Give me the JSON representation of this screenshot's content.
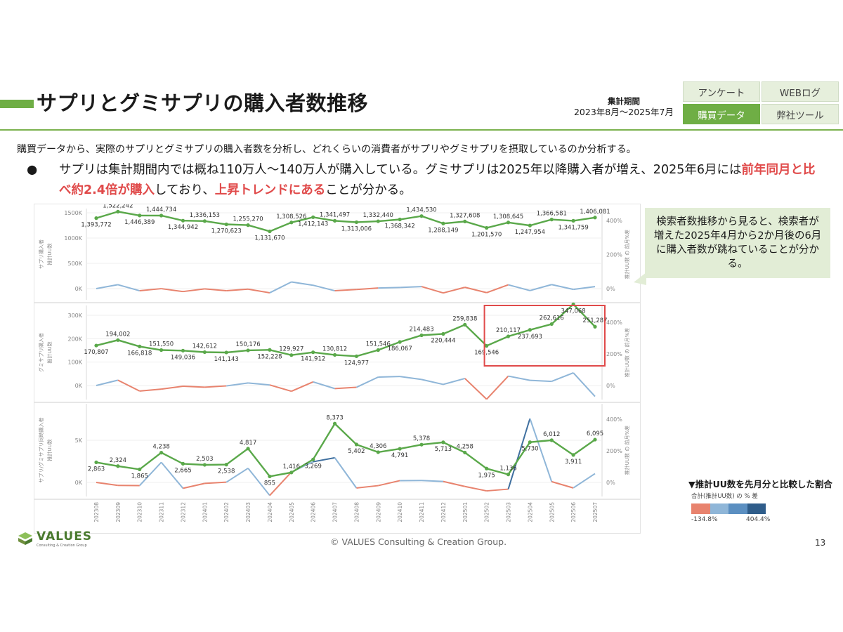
{
  "header": {
    "title": "サプリとグミサプリの購入者数推移",
    "period_label": "集計期間",
    "period_value": "2023年8月～2025年7月",
    "tabs": [
      {
        "label": "アンケート",
        "active": false
      },
      {
        "label": "WEBログ",
        "active": false
      },
      {
        "label": "購買データ",
        "active": true
      },
      {
        "label": "弊社ツール",
        "active": false
      }
    ]
  },
  "body": {
    "description": "購買データから、実際のサプリとグミサプリの購入者数を分析し、どれくらいの消費者がサプリやグミサプリを摂取しているのか分析する。",
    "bullet_marker": "●",
    "bullet_part1": "サプリは集計期間内では概ね110万人～140万人が購入している。グミサプリは2025年以降購入者が増え、2025年6月には",
    "bullet_highlight1": "前年同月と比べ約2.4倍が購入",
    "bullet_part2": "しており、",
    "bullet_highlight2": "上昇トレンドにある",
    "bullet_part3": "ことが分かる。"
  },
  "callout": {
    "text": "検索者数推移から見ると、検索者が増えた2025年4月から2か月後の6月に購入者数が跳ねていることが分かる。"
  },
  "legend": {
    "title": "▼推計UU数を先月分と比較した割合",
    "subtitle": "合計(推計UU数) の % 差",
    "min_label": "-134.8%",
    "max_label": "404.4%",
    "colors": [
      "#e8836e",
      "#8fb6d8",
      "#5b8fc1",
      "#2f5d8a"
    ]
  },
  "footer": {
    "logo_name": "VALUES",
    "logo_sub": "Consulting & Creation Group",
    "copyright": "© VALUES Consulting & Creation Group.",
    "page_number": "13"
  },
  "colors": {
    "accent_green": "#6fae45",
    "line_green": "#5aa84a",
    "highlight_red": "#e04a4a",
    "pct_negative": "#e8836e",
    "pct_positive": "#8fb6d8"
  },
  "chart_data": [
    {
      "type": "line",
      "ylabel_outer": "サプリ購入者",
      "ylabel": "推計UU数",
      "ylabel_right": "推計UU数 の 前月%差",
      "y_ticks": [
        "0K",
        "500K",
        "1000K",
        "1500K"
      ],
      "ylim": [
        0,
        1500000
      ],
      "right_ticks": [
        "0%",
        "200%",
        "400%"
      ],
      "right_lim": [
        -134.8,
        404.4
      ],
      "x": [
        "202308",
        "202309",
        "202310",
        "202311",
        "202312",
        "202401",
        "202402",
        "202403",
        "202404",
        "202405",
        "202406",
        "202407",
        "202408",
        "202409",
        "202410",
        "202411",
        "202412",
        "202501",
        "202502",
        "202503",
        "202504",
        "202505",
        "202506",
        "202507"
      ],
      "series": [
        {
          "name": "推計UU数",
          "values": [
            1393772,
            1522242,
            1446389,
            1444734,
            1344942,
            1336153,
            1270623,
            1255270,
            1131670,
            1308526,
            1412143,
            1341497,
            1313006,
            1332440,
            1368342,
            1434530,
            1288149,
            1327608,
            1201570,
            1308645,
            1247954,
            1366581,
            1341759,
            1406081
          ]
        },
        {
          "name": "推計UU数 の 前月%差",
          "values": [
            0,
            9.2,
            -5.0,
            -0.1,
            -6.9,
            -0.7,
            -4.9,
            -1.2,
            -9.8,
            15.6,
            7.9,
            -5.0,
            -2.1,
            1.5,
            2.7,
            4.8,
            -10.2,
            3.1,
            -9.5,
            8.9,
            -4.6,
            9.5,
            -1.8,
            4.8
          ]
        }
      ],
      "labels": [
        "1,393,772",
        "1,522,242",
        "1,446,389",
        "1,444,734",
        "1,344,942",
        "1,336,153",
        "1,270,623",
        "1,255,270",
        "1,131,670",
        "1,308,526",
        "1,412,143",
        "1,341,497",
        "1,313,006",
        "1,332,440",
        "1,368,342",
        "1,434,530",
        "1,288,149",
        "1,327,608",
        "1,201,570",
        "1,308,645",
        "1,247,954",
        "1,366,581",
        "1,341,759",
        "1,406,081"
      ]
    },
    {
      "type": "line",
      "ylabel_outer": "グミサプリ購入者",
      "ylabel": "推計UU数",
      "ylabel_right": "推計UU数 の 前月%差",
      "y_ticks": [
        "0K",
        "100K",
        "200K",
        "300K"
      ],
      "ylim": [
        0,
        300000
      ],
      "right_ticks": [
        "0%",
        "200%",
        "400%"
      ],
      "right_lim": [
        -134.8,
        404.4
      ],
      "x": [
        "202308",
        "202309",
        "202310",
        "202311",
        "202312",
        "202401",
        "202402",
        "202403",
        "202404",
        "202405",
        "202406",
        "202407",
        "202408",
        "202409",
        "202410",
        "202411",
        "202412",
        "202501",
        "202502",
        "202503",
        "202504",
        "202505",
        "202506",
        "202507"
      ],
      "series": [
        {
          "name": "推計UU数",
          "values": [
            170807,
            194002,
            166818,
            151550,
            149036,
            142612,
            141143,
            150176,
            152228,
            129927,
            141912,
            130812,
            124977,
            151546,
            186067,
            214483,
            220444,
            259838,
            169546,
            210117,
            237693,
            262616,
            347068,
            251287
          ]
        },
        {
          "name": "推計UU数 の 前月%差",
          "values": [
            0,
            13.6,
            -14.0,
            -9.2,
            -1.7,
            -4.3,
            -1.0,
            6.4,
            1.4,
            -14.6,
            9.2,
            -7.8,
            -4.5,
            21.3,
            22.8,
            15.3,
            2.8,
            17.9,
            -34.7,
            23.9,
            13.1,
            10.5,
            32.2,
            -27.6
          ]
        }
      ],
      "labels": [
        "170,807",
        "194,002",
        "166,818",
        "151,550",
        "149,036",
        "142,612",
        "141,143",
        "150,176",
        "152,228",
        "129,927",
        "141,912",
        "130,812",
        "124,977",
        "151,546",
        "186,067",
        "214,483",
        "220,444",
        "259,838",
        "169,546",
        "210,117",
        "237,693",
        "262,616",
        "347,068",
        "251,287"
      ]
    },
    {
      "type": "line",
      "ylabel_outer": "サプリ/グミサプリ同時購入者",
      "ylabel": "推計UU数",
      "ylabel_right": "推計UU数 の 前月%差",
      "y_ticks": [
        "0K",
        "5K"
      ],
      "ylim": [
        0,
        10000
      ],
      "right_ticks": [
        "0%",
        "200%",
        "400%"
      ],
      "right_lim": [
        -134.8,
        404.4
      ],
      "x": [
        "202308",
        "202309",
        "202310",
        "202311",
        "202312",
        "202401",
        "202402",
        "202403",
        "202404",
        "202405",
        "202406",
        "202407",
        "202408",
        "202409",
        "202410",
        "202411",
        "202412",
        "202501",
        "202502",
        "202503",
        "202504",
        "202505",
        "202506",
        "202507"
      ],
      "series": [
        {
          "name": "推計UU数",
          "values": [
            2863,
            2324,
            1865,
            4238,
            2665,
            2503,
            2538,
            4817,
            855,
            1416,
            3269,
            8373,
            5402,
            4306,
            4791,
            5378,
            5713,
            4258,
            1975,
            1136,
            5730,
            6012,
            3911,
            6095
          ]
        },
        {
          "name": "推計UU数 の 前月%差",
          "values": [
            0,
            -18.8,
            -19.8,
            127.2,
            -37.1,
            -6.1,
            1.4,
            89.8,
            -82.3,
            65.6,
            130.9,
            156.1,
            -35.5,
            -20.3,
            11.3,
            12.3,
            6.2,
            -25.5,
            -53.6,
            -42.5,
            404.4,
            4.9,
            -34.9,
            55.8
          ]
        }
      ],
      "labels": [
        "2,863",
        "2,324",
        "1,865",
        "4,238",
        "2,665",
        "2,503",
        "2,538",
        "4,817",
        "855",
        "1,416",
        "3,269",
        "8,373",
        "5,402",
        "4,306",
        "4,791",
        "5,378",
        "5,713",
        "4,258",
        "1,975",
        "1,136",
        "5,730",
        "6,012",
        "3,911",
        "6,095"
      ]
    }
  ]
}
